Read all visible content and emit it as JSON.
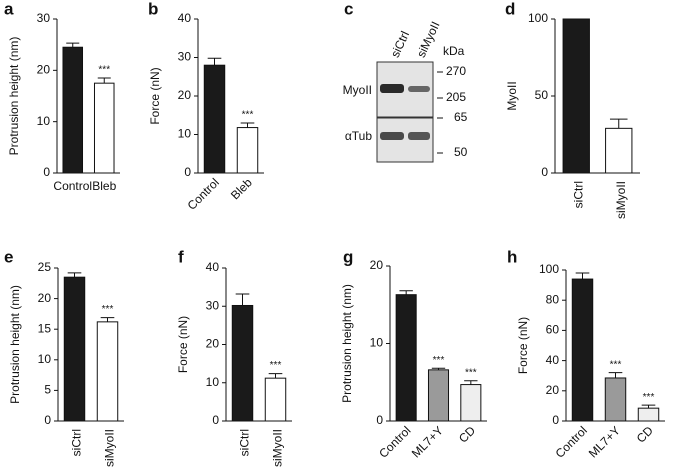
{
  "chart_data": [
    {
      "type": "bar",
      "panel": "a",
      "ylabel": "Protrusion height (nm)",
      "categories": [
        "Control",
        "Bleb"
      ],
      "values": [
        24.5,
        17.5
      ],
      "errors": [
        0.8,
        1.0
      ],
      "colors": [
        "#1a1a1a",
        "#ffffff"
      ],
      "significance": [
        null,
        "***"
      ],
      "ylim": [
        0,
        30
      ],
      "yticks": [
        0,
        10,
        20,
        30
      ]
    },
    {
      "type": "bar",
      "panel": "b",
      "ylabel": "Force (nN)",
      "categories": [
        "Control",
        "Bleb"
      ],
      "values": [
        28,
        11.8
      ],
      "errors": [
        1.8,
        1.2
      ],
      "colors": [
        "#1a1a1a",
        "#ffffff"
      ],
      "significance": [
        null,
        "***"
      ],
      "ylim": [
        0,
        40
      ],
      "yticks": [
        0,
        10,
        20,
        30,
        40
      ]
    },
    {
      "type": "bar",
      "panel": "d",
      "ylabel": "MyoII",
      "categories": [
        "siCtrl",
        "siMyoII"
      ],
      "values": [
        100,
        29
      ],
      "errors": [
        null,
        6
      ],
      "colors": [
        "#1a1a1a",
        "#ffffff"
      ],
      "significance": [
        null,
        null
      ],
      "ylim": [
        0,
        100
      ],
      "yticks": [
        0,
        50,
        100
      ]
    },
    {
      "type": "bar",
      "panel": "e",
      "ylabel": "Protrusion height (nm)",
      "categories": [
        "siCtrl",
        "siMyoII"
      ],
      "values": [
        23.5,
        16.2
      ],
      "errors": [
        0.7,
        0.7
      ],
      "colors": [
        "#1a1a1a",
        "#ffffff"
      ],
      "significance": [
        null,
        "***"
      ],
      "ylim": [
        0,
        25
      ],
      "yticks": [
        0,
        5,
        10,
        15,
        20,
        25
      ]
    },
    {
      "type": "bar",
      "panel": "f",
      "ylabel": "Force (nN)",
      "categories": [
        "siCtrl",
        "siMyoII"
      ],
      "values": [
        30.2,
        11.2
      ],
      "errors": [
        3,
        1.2
      ],
      "colors": [
        "#1a1a1a",
        "#ffffff"
      ],
      "significance": [
        null,
        "***"
      ],
      "ylim": [
        0,
        40
      ],
      "yticks": [
        0,
        10,
        20,
        30,
        40
      ]
    },
    {
      "type": "bar",
      "panel": "g",
      "ylabel": "Protrusion height (nm)",
      "categories": [
        "Control",
        "ML7+Y",
        "CD"
      ],
      "values": [
        16.3,
        6.6,
        4.7
      ],
      "errors": [
        0.5,
        0.2,
        0.5
      ],
      "colors": [
        "#1a1a1a",
        "#9a9a9a",
        "#eeeeee"
      ],
      "significance": [
        null,
        "***",
        "***"
      ],
      "ylim": [
        0,
        20
      ],
      "yticks": [
        0,
        10,
        20
      ]
    },
    {
      "type": "bar",
      "panel": "h",
      "ylabel": "Force (nN)",
      "categories": [
        "Control",
        "ML7+Y",
        "CD"
      ],
      "values": [
        94,
        28.5,
        8.5
      ],
      "errors": [
        4,
        3.5,
        2
      ],
      "colors": [
        "#1a1a1a",
        "#9a9a9a",
        "#eeeeee"
      ],
      "significance": [
        null,
        "***",
        "***"
      ],
      "ylim": [
        0,
        100
      ],
      "yticks": [
        0,
        20,
        40,
        60,
        80,
        100
      ]
    }
  ],
  "blot": {
    "panel": "c",
    "lanes": [
      "siCtrl",
      "siMyoII"
    ],
    "unit": "kDa",
    "rows": [
      "MyoII",
      "αTub"
    ],
    "markers": [
      "270",
      "205",
      "65",
      "50"
    ]
  }
}
